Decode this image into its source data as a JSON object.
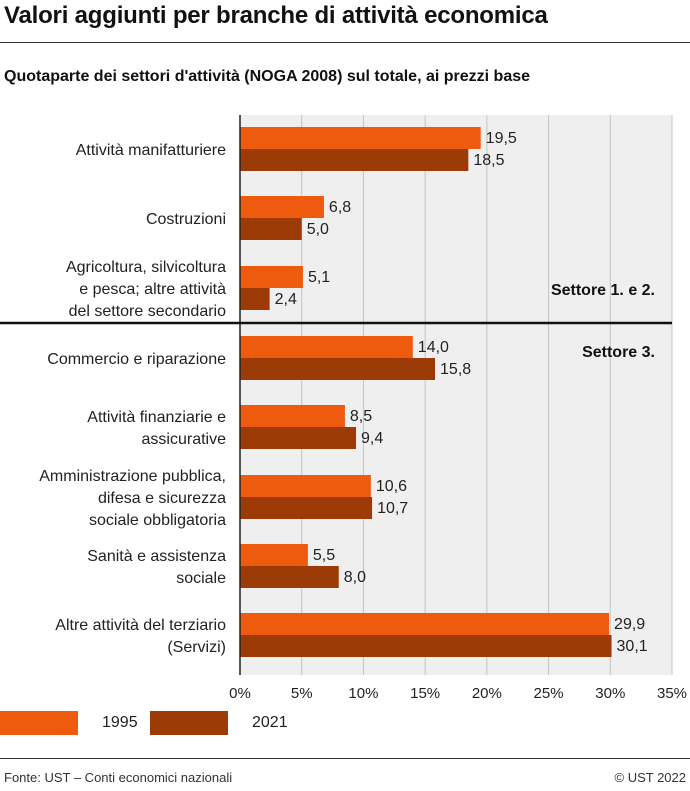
{
  "title": "Valori aggiunti per branche di attività economica",
  "subtitle": "Quotaparte dei settori d'attività (NOGA 2008) sul totale, ai prezzi base",
  "source": "Fonte: UST – Conti economici nazionali",
  "copyright": "© UST 2022",
  "colors": {
    "series_1995": "#ee5a0e",
    "series_2021": "#9d3b06",
    "plot_bg": "#efefef",
    "grid": "#c4c4c4"
  },
  "chart_data": {
    "type": "bar",
    "orientation": "horizontal",
    "categories": [
      "Attività manifatturiere",
      "Costruzioni",
      "Agricoltura, silvicoltura e pesca; altre attività del settore secondario",
      "Commercio e riparazione",
      "Attività finanziarie e assicurative",
      "Amministrazione pubblica, difesa e sicurezza sociale obbligatoria",
      "Sanità e assistenza sociale",
      "Altre attività del terziario (Servizi)"
    ],
    "category_lines": [
      [
        "Attività manifatturiere"
      ],
      [
        "Costruzioni"
      ],
      [
        "Agricoltura, silvicoltura",
        "e pesca; altre attività",
        "del settore secondario"
      ],
      [
        "Commercio e riparazione"
      ],
      [
        "Attività finanziarie e",
        "assicurative"
      ],
      [
        "Amministrazione pubblica,",
        "difesa e sicurezza",
        "sociale obbligatoria"
      ],
      [
        "Sanità e assistenza",
        "sociale"
      ],
      [
        "Altre attività del terziario",
        "(Servizi)"
      ]
    ],
    "series": [
      {
        "name": "1995",
        "values": [
          19.5,
          6.8,
          5.1,
          14.0,
          8.5,
          10.6,
          5.5,
          29.9
        ],
        "labels": [
          "19,5",
          "6,8",
          "5,1",
          "14,0",
          "8,5",
          "10,6",
          "5,5",
          "29,9"
        ]
      },
      {
        "name": "2021",
        "values": [
          18.5,
          5.0,
          2.4,
          15.8,
          9.4,
          10.7,
          8.0,
          30.1
        ],
        "labels": [
          "18,5",
          "5,0",
          "2,4",
          "15,8",
          "9,4",
          "10,7",
          "8,0",
          "30,1"
        ]
      }
    ],
    "xlim": [
      0,
      35
    ],
    "xticks": [
      0,
      5,
      10,
      15,
      20,
      25,
      30,
      35
    ],
    "xtick_labels": [
      "0%",
      "5%",
      "10%",
      "15%",
      "20%",
      "25%",
      "30%",
      "35%"
    ],
    "grid": true,
    "legend_position": "bottom-left",
    "annotations": [
      {
        "text": "Settore 1. e 2.",
        "position": "above-divider-right"
      },
      {
        "text": "Settore 3.",
        "position": "below-divider-right"
      }
    ],
    "divider_after_category": 2
  }
}
